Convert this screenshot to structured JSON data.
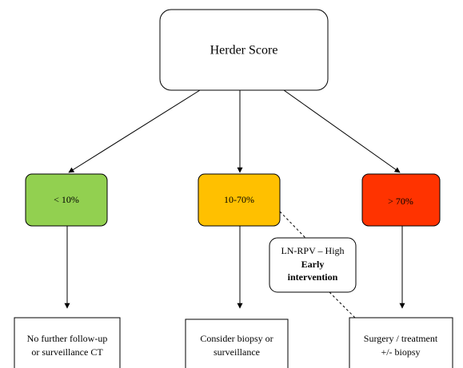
{
  "nodes": [
    {
      "label": [
        "Herder Score"
      ]
    },
    {
      "label": [
        "< 10%"
      ]
    },
    {
      "label": [
        "10-70%"
      ]
    },
    {
      "label": [
        "> 70%"
      ]
    },
    {
      "label": [
        "LN-RPV – High",
        "Early",
        "intervention"
      ]
    },
    {
      "label": [
        "No further follow-up",
        "or surveillance CT"
      ]
    },
    {
      "label": [
        "Consider biopsy or",
        "surveillance"
      ]
    },
    {
      "label": [
        "Surgery / treatment",
        "+/- biopsy"
      ]
    }
  ]
}
